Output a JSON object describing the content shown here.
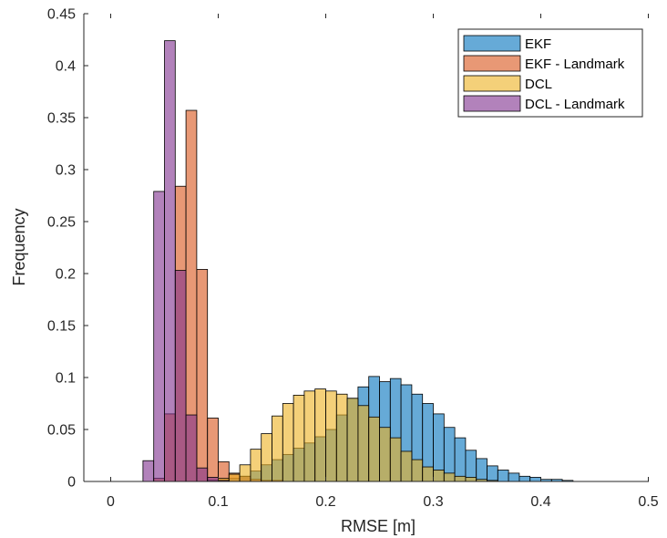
{
  "chart_data": {
    "type": "bar",
    "title": "",
    "xlabel": "RMSE [m]",
    "ylabel": "Frequency",
    "xlim": [
      0,
      0.5
    ],
    "ylim": [
      0,
      0.45
    ],
    "xticks": [
      "0",
      "0.1",
      "0.2",
      "0.3",
      "0.4",
      "0.5"
    ],
    "yticks": [
      "0",
      "0.05",
      "0.1",
      "0.15",
      "0.2",
      "0.25",
      "0.3",
      "0.35",
      "0.4",
      "0.45"
    ],
    "grid": false,
    "legend_position": "top-right",
    "bin_width": 0.01,
    "series": [
      {
        "name": "EKF",
        "color": "#0072BD",
        "bin_start": 0.1,
        "values": [
          0.001,
          0.003,
          0.005,
          0.01,
          0.016,
          0.021,
          0.026,
          0.032,
          0.037,
          0.043,
          0.05,
          0.064,
          0.08,
          0.091,
          0.101,
          0.096,
          0.099,
          0.093,
          0.084,
          0.075,
          0.065,
          0.052,
          0.042,
          0.03,
          0.022,
          0.015,
          0.011,
          0.008,
          0.005,
          0.004,
          0.002,
          0.002,
          0.001
        ]
      },
      {
        "name": "EKF - Landmark",
        "color": "#D95319",
        "bin_start": 0.04,
        "values": [
          0.003,
          0.065,
          0.284,
          0.357,
          0.204,
          0.061,
          0.019,
          0.008,
          0.005,
          0.002,
          0.001,
          0.001
        ]
      },
      {
        "name": "DCL",
        "color": "#EDB120",
        "bin_start": 0.09,
        "values": [
          0.001,
          0.003,
          0.007,
          0.016,
          0.031,
          0.046,
          0.063,
          0.075,
          0.083,
          0.087,
          0.089,
          0.087,
          0.084,
          0.08,
          0.073,
          0.062,
          0.052,
          0.042,
          0.029,
          0.021,
          0.014,
          0.011,
          0.008,
          0.005,
          0.004,
          0.002,
          0.001
        ]
      },
      {
        "name": "DCL - Landmark",
        "color": "#7E2F8E",
        "bin_start": 0.03,
        "values": [
          0.02,
          0.279,
          0.424,
          0.203,
          0.064,
          0.013,
          0.004,
          0.001
        ]
      }
    ]
  }
}
